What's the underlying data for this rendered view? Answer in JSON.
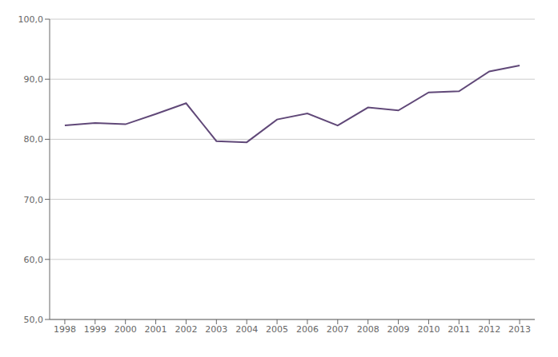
{
  "chart_data": {
    "type": "line",
    "x": [
      1998,
      1999,
      2000,
      2001,
      2002,
      2003,
      2004,
      2005,
      2006,
      2007,
      2008,
      2009,
      2010,
      2011,
      2012,
      2013
    ],
    "values": [
      82.3,
      82.7,
      82.5,
      84.2,
      86.0,
      79.7,
      79.5,
      83.3,
      84.3,
      82.3,
      85.3,
      84.8,
      87.8,
      88.0,
      91.3,
      92.3
    ],
    "color": "#604878",
    "xlim": [
      1997.5,
      2013.5
    ],
    "xticks": [
      1998,
      1999,
      2000,
      2001,
      2002,
      2003,
      2004,
      2005,
      2006,
      2007,
      2008,
      2009,
      2010,
      2011,
      2012,
      2013
    ],
    "ylim": [
      50.0,
      100.0
    ],
    "yticks": [
      {
        "value": 50.0,
        "label": "50,0"
      },
      {
        "value": 60.0,
        "label": "60,0"
      },
      {
        "value": 70.0,
        "label": "70,0"
      },
      {
        "value": 80.0,
        "label": "80,0"
      },
      {
        "value": 90.0,
        "label": "90,0"
      },
      {
        "value": 100.0,
        "label": "100,0"
      }
    ],
    "grid": true
  }
}
